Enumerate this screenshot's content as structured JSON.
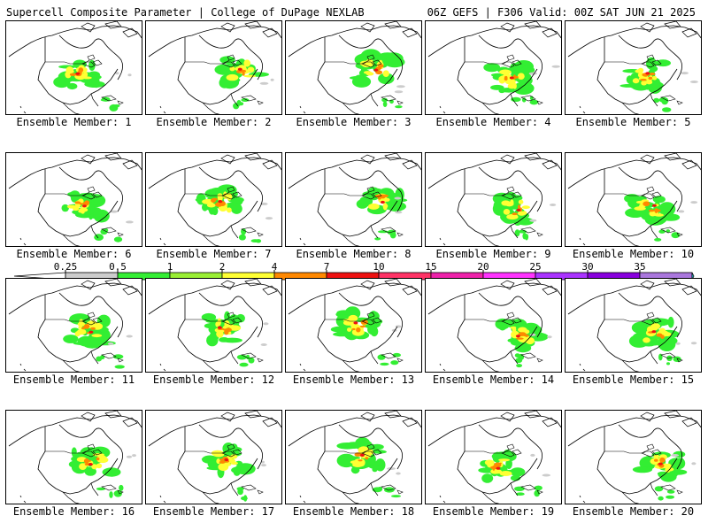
{
  "header": {
    "title": "Supercell Composite Parameter | College of DuPage NEXLAB",
    "run_info": "06Z GEFS | F306 Valid: 00Z SAT JUN 21 2025"
  },
  "members": [
    {
      "label": "Ensemble Member: 1"
    },
    {
      "label": "Ensemble Member: 2"
    },
    {
      "label": "Ensemble Member: 3"
    },
    {
      "label": "Ensemble Member: 4"
    },
    {
      "label": "Ensemble Member: 5"
    },
    {
      "label": "Ensemble Member: 6"
    },
    {
      "label": "Ensemble Member: 7"
    },
    {
      "label": "Ensemble Member: 8"
    },
    {
      "label": "Ensemble Member: 9"
    },
    {
      "label": "Ensemble Member: 10"
    },
    {
      "label": "Ensemble Member: 11"
    },
    {
      "label": "Ensemble Member: 12"
    },
    {
      "label": "Ensemble Member: 13"
    },
    {
      "label": "Ensemble Member: 14"
    },
    {
      "label": "Ensemble Member: 15"
    },
    {
      "label": "Ensemble Member: 16"
    },
    {
      "label": "Ensemble Member: 17"
    },
    {
      "label": "Ensemble Member: 18"
    },
    {
      "label": "Ensemble Member: 19"
    },
    {
      "label": "Ensemble Member: 20"
    }
  ],
  "colorbar": {
    "ticks": [
      "0.25",
      "0.5",
      "1",
      "2",
      "4",
      "7",
      "10",
      "15",
      "20",
      "25",
      "30",
      "35"
    ],
    "colors": [
      "#cccccc",
      "#33ee33",
      "#99ee33",
      "#ffff33",
      "#ff8800",
      "#ee1111",
      "#ff3366",
      "#ee22aa",
      "#ff33ff",
      "#aa33ff",
      "#8800dd",
      "#aa77dd",
      "#33ddee"
    ]
  }
}
